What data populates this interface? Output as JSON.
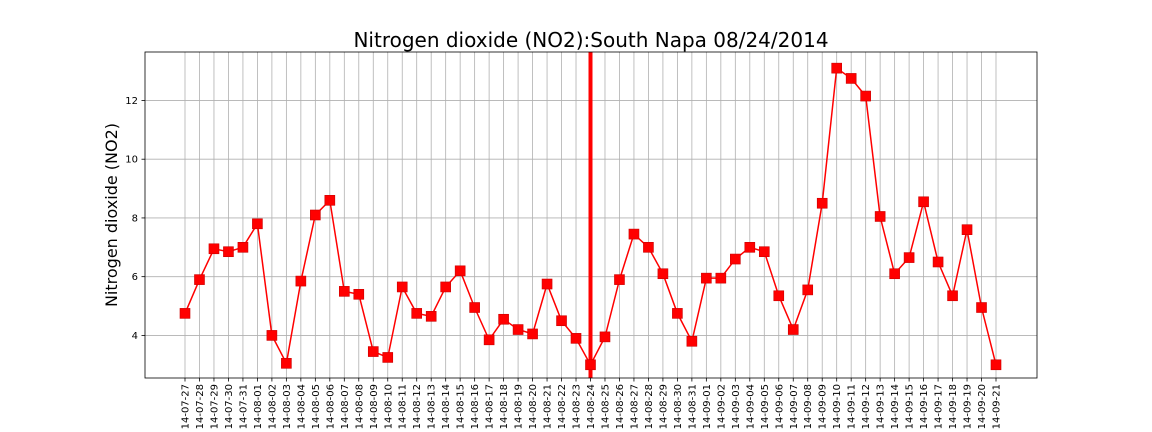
{
  "chart_data": {
    "type": "line",
    "title": "Nitrogen dioxide (NO2):South Napa 08/24/2014",
    "xlabel": "",
    "ylabel": "Nitrogen dioxide (NO2)",
    "x": [
      "14-07-27",
      "14-07-28",
      "14-07-29",
      "14-07-30",
      "14-07-31",
      "14-08-01",
      "14-08-02",
      "14-08-03",
      "14-08-04",
      "14-08-05",
      "14-08-06",
      "14-08-07",
      "14-08-08",
      "14-08-09",
      "14-08-10",
      "14-08-11",
      "14-08-12",
      "14-08-13",
      "14-08-14",
      "14-08-15",
      "14-08-16",
      "14-08-17",
      "14-08-18",
      "14-08-19",
      "14-08-20",
      "14-08-21",
      "14-08-22",
      "14-08-23",
      "14-08-24",
      "14-08-25",
      "14-08-26",
      "14-08-27",
      "14-08-28",
      "14-08-29",
      "14-08-30",
      "14-08-31",
      "14-09-01",
      "14-09-02",
      "14-09-03",
      "14-09-04",
      "14-09-05",
      "14-09-06",
      "14-09-07",
      "14-09-08",
      "14-09-09",
      "14-09-10",
      "14-09-11",
      "14-09-12",
      "14-09-13",
      "14-09-14",
      "14-09-15",
      "14-09-16",
      "14-09-17",
      "14-09-18",
      "14-09-19",
      "14-09-20",
      "14-09-21"
    ],
    "series": [
      {
        "values": [
          4.75,
          5.9,
          6.95,
          6.85,
          7.0,
          7.8,
          4.0,
          3.05,
          5.85,
          8.1,
          8.6,
          5.5,
          5.4,
          3.45,
          3.25,
          5.65,
          4.75,
          4.65,
          5.65,
          6.2,
          4.95,
          3.85,
          4.55,
          4.2,
          4.05,
          5.75,
          4.5,
          3.9,
          3.0,
          3.95,
          5.9,
          7.45,
          7.0,
          6.1,
          4.75,
          3.8,
          5.95,
          5.95,
          6.6,
          7.0,
          6.85,
          5.35,
          4.2,
          5.55,
          8.5,
          13.1,
          12.75,
          12.15,
          8.05,
          6.1,
          6.65,
          8.55,
          6.5,
          5.35,
          7.6,
          4.95,
          3.0
        ],
        "color": "#ff0000"
      }
    ],
    "event_marker": {
      "x": "14-08-24",
      "color": "#ff0000"
    },
    "ylim": [
      2.55,
      13.65
    ],
    "yticks": [
      4,
      6,
      8,
      10,
      12
    ],
    "grid": true,
    "legend": "none"
  }
}
